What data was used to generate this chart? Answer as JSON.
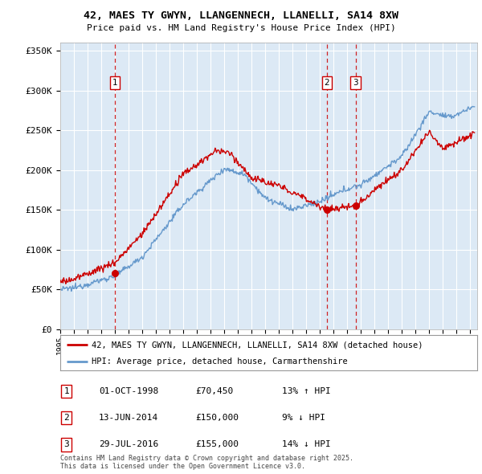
{
  "title1": "42, MAES TY GWYN, LLANGENNECH, LLANELLI, SA14 8XW",
  "title2": "Price paid vs. HM Land Registry's House Price Index (HPI)",
  "ylabel_ticks": [
    "£0",
    "£50K",
    "£100K",
    "£150K",
    "£200K",
    "£250K",
    "£300K",
    "£350K"
  ],
  "ytick_values": [
    0,
    50000,
    100000,
    150000,
    200000,
    250000,
    300000,
    350000
  ],
  "ylim": [
    0,
    360000
  ],
  "xlim_start": 1995.0,
  "xlim_end": 2025.5,
  "vlines": [
    {
      "x": 1999.0,
      "label": "1",
      "price": 70450
    },
    {
      "x": 2014.5,
      "label": "2",
      "price": 150000
    },
    {
      "x": 2016.6,
      "label": "3",
      "price": 155000
    }
  ],
  "legend_entries": [
    "42, MAES TY GWYN, LLANGENNECH, LLANELLI, SA14 8XW (detached house)",
    "HPI: Average price, detached house, Carmarthenshire"
  ],
  "table_rows": [
    {
      "num": "1",
      "date": "01-OCT-1998",
      "price": "£70,450",
      "hpi": "13% ↑ HPI"
    },
    {
      "num": "2",
      "date": "13-JUN-2014",
      "price": "£150,000",
      "hpi": "9% ↓ HPI"
    },
    {
      "num": "3",
      "date": "29-JUL-2016",
      "price": "£155,000",
      "hpi": "14% ↓ HPI"
    }
  ],
  "footnote": "Contains HM Land Registry data © Crown copyright and database right 2025.\nThis data is licensed under the Open Government Licence v3.0.",
  "red_color": "#cc0000",
  "blue_color": "#6699cc",
  "vline_color": "#cc0000",
  "chart_bg": "#dce9f5",
  "background_color": "#ffffff",
  "grid_color": "#ffffff"
}
